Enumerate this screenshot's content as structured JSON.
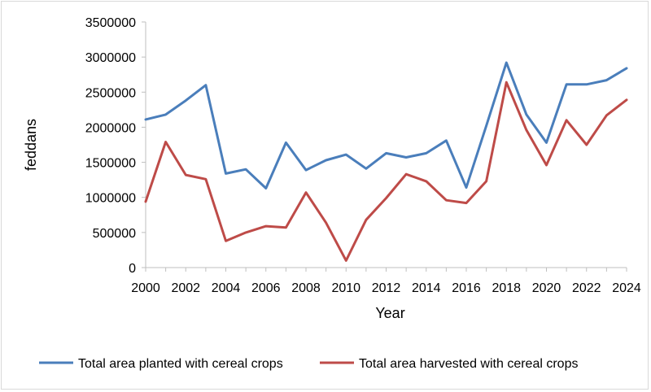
{
  "chart_data": {
    "type": "line",
    "title": "",
    "xlabel": "Year",
    "ylabel": "feddans",
    "xlim": [
      2000,
      2024
    ],
    "ylim": [
      0,
      3500000
    ],
    "y_ticks": [
      0,
      500000,
      1000000,
      1500000,
      2000000,
      2500000,
      3000000,
      3500000
    ],
    "y_tick_labels": [
      "0",
      "500000",
      "1000000",
      "1500000",
      "2000000",
      "2500000",
      "3000000",
      "3500000"
    ],
    "x_ticks": [
      2000,
      2002,
      2004,
      2006,
      2008,
      2010,
      2012,
      2014,
      2016,
      2018,
      2020,
      2022,
      2024
    ],
    "x_tick_labels": [
      "2000",
      "2002",
      "2004",
      "2006",
      "2008",
      "2010",
      "2012",
      "2014",
      "2016",
      "2018",
      "2020",
      "2022",
      "2024"
    ],
    "grid": false,
    "legend_position": "bottom",
    "x": [
      2000,
      2001,
      2002,
      2003,
      2004,
      2005,
      2006,
      2007,
      2008,
      2009,
      2010,
      2011,
      2012,
      2013,
      2014,
      2015,
      2016,
      2017,
      2018,
      2019,
      2020,
      2021,
      2022,
      2023,
      2024
    ],
    "series": [
      {
        "name": "Total area planted with cereal crops",
        "color": "#4a7ebb",
        "values": [
          2110000,
          2180000,
          2380000,
          2600000,
          1340000,
          1400000,
          1130000,
          1780000,
          1390000,
          1530000,
          1610000,
          1410000,
          1630000,
          1570000,
          1630000,
          1810000,
          1140000,
          2020000,
          2920000,
          2180000,
          1780000,
          2610000,
          2610000,
          2670000,
          2840000
        ]
      },
      {
        "name": "Total area harvested with cereal crops",
        "color": "#be4b48",
        "values": [
          940000,
          1790000,
          1320000,
          1260000,
          380000,
          500000,
          590000,
          570000,
          1070000,
          640000,
          100000,
          680000,
          990000,
          1330000,
          1230000,
          960000,
          920000,
          1230000,
          2640000,
          1960000,
          1460000,
          2100000,
          1750000,
          2170000,
          2390000
        ]
      }
    ]
  }
}
